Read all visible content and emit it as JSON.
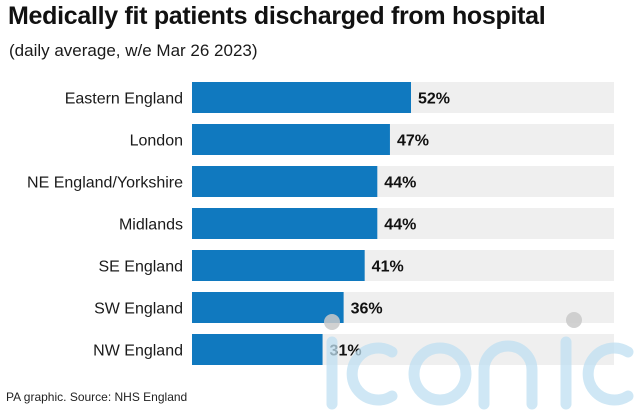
{
  "header": {
    "title": "Medically fit patients discharged from hospital",
    "subtitle": "(daily average, w/e Mar 26 2023)"
  },
  "footer": {
    "source": "PA graphic. Source: NHS England"
  },
  "colors": {
    "bar": "#1079bf",
    "track": "#efefef",
    "text": "#1a1a1a"
  },
  "chart_data": {
    "type": "bar",
    "orientation": "horizontal",
    "title": "Medically fit patients discharged from hospital",
    "subtitle": "(daily average, w/e Mar 26 2023)",
    "categories": [
      "Eastern England",
      "London",
      "NE England/Yorkshire",
      "Midlands",
      "SE England",
      "SW England",
      "NW England"
    ],
    "values": [
      52,
      47,
      44,
      44,
      41,
      36,
      31
    ],
    "value_labels": [
      "52%",
      "47%",
      "44%",
      "44%",
      "41%",
      "36%",
      "31%"
    ],
    "unit": "%",
    "xlim": [
      0,
      100
    ],
    "grid": false,
    "legend": "none"
  }
}
